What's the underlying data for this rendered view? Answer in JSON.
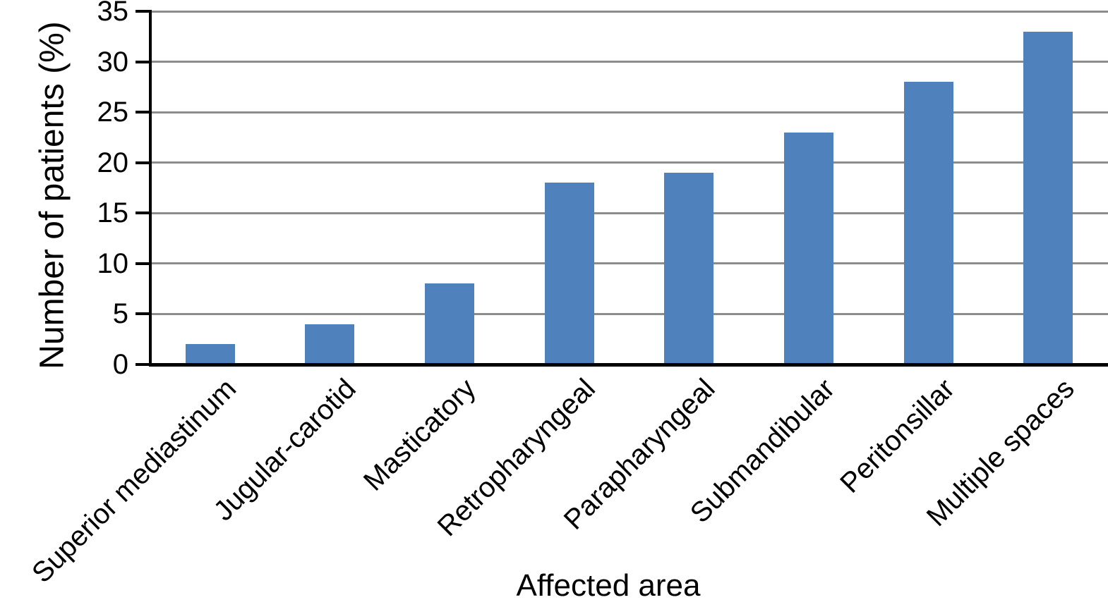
{
  "chart_data": {
    "type": "bar",
    "title": "",
    "xlabel": "Affected area",
    "ylabel": "Number of patients (%)",
    "categories": [
      "Superior mediastinum",
      "Jugular-carotid",
      "Masticatory",
      "Retropharyngeal",
      "Parapharyngeal",
      "Submandibular",
      "Peritonsillar",
      "Multiple spaces"
    ],
    "values": [
      2,
      4,
      8,
      18,
      19,
      23,
      28,
      33
    ],
    "ylim": [
      0,
      35
    ],
    "yticks": [
      0,
      5,
      10,
      15,
      20,
      25,
      30,
      35
    ],
    "grid": "horizontal",
    "legend": "none",
    "colors": {
      "bar": "#4F81BD",
      "gridline": "#8C8C8C",
      "axis": "#000000",
      "text": "#000000",
      "background": "#FFFFFF"
    }
  }
}
